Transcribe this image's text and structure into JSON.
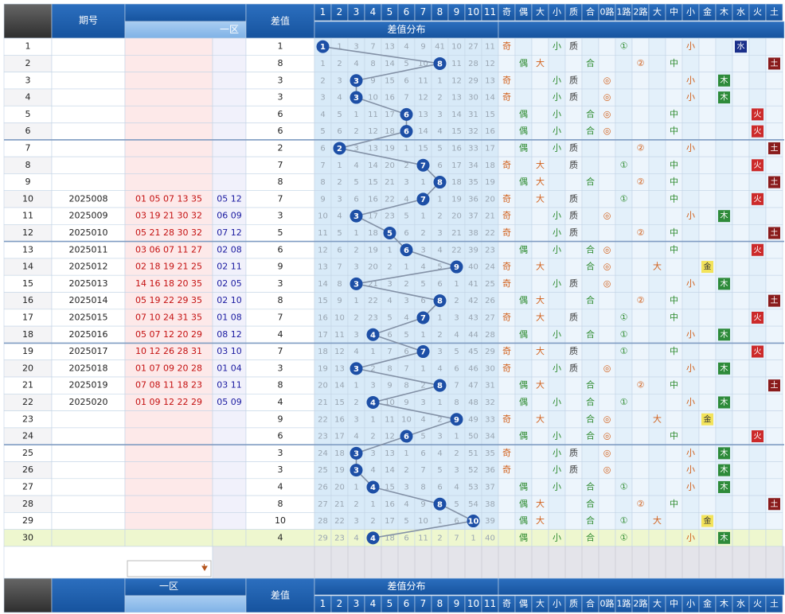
{
  "header": {
    "issue": "期号",
    "back_zone": "一区",
    "diff": "差值",
    "distribution": "差值分布",
    "digits": [
      1,
      2,
      3,
      4,
      5,
      6,
      7,
      8,
      9,
      10,
      11
    ],
    "attributes": [
      "奇",
      "偶",
      "大",
      "小",
      "质",
      "合",
      "0路",
      "1路",
      "2路",
      "大",
      "中",
      "小",
      "金",
      "木",
      "水",
      "火",
      "土"
    ]
  },
  "rows": [
    {
      "index": 1,
      "issue": null,
      "front": null,
      "back": null,
      "diff": 1,
      "missing": [
        null,
        1,
        3,
        7,
        13,
        4,
        9,
        41,
        10,
        27,
        11
      ],
      "attrs": [
        "奇",
        null,
        null,
        "小",
        "质",
        null,
        null,
        "①",
        null,
        null,
        null,
        "小",
        null,
        null,
        "水",
        null,
        null
      ]
    },
    {
      "index": 2,
      "issue": null,
      "front": null,
      "back": null,
      "diff": 8,
      "missing": [
        1,
        2,
        4,
        8,
        14,
        5,
        10,
        null,
        11,
        28,
        12
      ],
      "attrs": [
        null,
        "偶",
        "大",
        null,
        null,
        "合",
        null,
        null,
        "②",
        null,
        "中",
        null,
        null,
        null,
        null,
        null,
        "土"
      ]
    },
    {
      "index": 3,
      "issue": null,
      "front": null,
      "back": null,
      "diff": 3,
      "missing": [
        2,
        3,
        null,
        9,
        15,
        6,
        11,
        1,
        12,
        29,
        13
      ],
      "attrs": [
        "奇",
        null,
        null,
        "小",
        "质",
        null,
        "◎",
        null,
        null,
        null,
        null,
        "小",
        null,
        "木",
        null,
        null,
        null
      ]
    },
    {
      "index": 4,
      "issue": null,
      "front": null,
      "back": null,
      "diff": 3,
      "missing": [
        3,
        4,
        null,
        10,
        16,
        7,
        12,
        2,
        13,
        30,
        14
      ],
      "attrs": [
        "奇",
        null,
        null,
        "小",
        "质",
        null,
        "◎",
        null,
        null,
        null,
        null,
        "小",
        null,
        "木",
        null,
        null,
        null
      ]
    },
    {
      "index": 5,
      "issue": null,
      "front": null,
      "back": null,
      "diff": 6,
      "missing": [
        4,
        5,
        1,
        11,
        17,
        null,
        13,
        3,
        14,
        31,
        15
      ],
      "attrs": [
        null,
        "偶",
        null,
        "小",
        null,
        "合",
        "◎",
        null,
        null,
        null,
        "中",
        null,
        null,
        null,
        null,
        "火",
        null
      ]
    },
    {
      "index": 6,
      "issue": null,
      "front": null,
      "back": null,
      "diff": 6,
      "missing": [
        5,
        6,
        2,
        12,
        18,
        null,
        14,
        4,
        15,
        32,
        16
      ],
      "attrs": [
        null,
        "偶",
        null,
        "小",
        null,
        "合",
        "◎",
        null,
        null,
        null,
        "中",
        null,
        null,
        null,
        null,
        "火",
        null
      ]
    },
    {
      "index": 7,
      "issue": null,
      "front": null,
      "back": null,
      "diff": 2,
      "missing": [
        6,
        null,
        3,
        13,
        19,
        1,
        15,
        5,
        16,
        33,
        17
      ],
      "attrs": [
        null,
        "偶",
        null,
        "小",
        "质",
        null,
        null,
        null,
        "②",
        null,
        null,
        "小",
        null,
        null,
        null,
        null,
        "土"
      ]
    },
    {
      "index": 8,
      "issue": null,
      "front": null,
      "back": null,
      "diff": 7,
      "missing": [
        7,
        1,
        4,
        14,
        20,
        2,
        null,
        6,
        17,
        34,
        18
      ],
      "attrs": [
        "奇",
        null,
        "大",
        null,
        "质",
        null,
        null,
        "①",
        null,
        null,
        "中",
        null,
        null,
        null,
        null,
        "火",
        null
      ]
    },
    {
      "index": 9,
      "issue": null,
      "front": null,
      "back": null,
      "diff": 8,
      "missing": [
        8,
        2,
        5,
        15,
        21,
        3,
        1,
        null,
        18,
        35,
        19
      ],
      "attrs": [
        null,
        "偶",
        "大",
        null,
        null,
        "合",
        null,
        null,
        "②",
        null,
        "中",
        null,
        null,
        null,
        null,
        null,
        "土"
      ]
    },
    {
      "index": 10,
      "issue": "2025008",
      "front": "01 05 07 13 35",
      "back": "05 12",
      "diff": 7,
      "missing": [
        9,
        3,
        6,
        16,
        22,
        4,
        null,
        1,
        19,
        36,
        20
      ],
      "attrs": [
        "奇",
        null,
        "大",
        null,
        "质",
        null,
        null,
        "①",
        null,
        null,
        "中",
        null,
        null,
        null,
        null,
        "火",
        null
      ]
    },
    {
      "index": 11,
      "issue": "2025009",
      "front": "03 19 21 30 32",
      "back": "06 09",
      "diff": 3,
      "missing": [
        10,
        4,
        null,
        17,
        23,
        5,
        1,
        2,
        20,
        37,
        21
      ],
      "attrs": [
        "奇",
        null,
        null,
        "小",
        "质",
        null,
        "◎",
        null,
        null,
        null,
        null,
        "小",
        null,
        "木",
        null,
        null,
        null
      ]
    },
    {
      "index": 12,
      "issue": "2025010",
      "front": "05 21 28 30 32",
      "back": "07 12",
      "diff": 5,
      "missing": [
        11,
        5,
        1,
        18,
        null,
        6,
        2,
        3,
        21,
        38,
        22
      ],
      "attrs": [
        "奇",
        null,
        null,
        "小",
        "质",
        null,
        null,
        null,
        "②",
        null,
        "中",
        null,
        null,
        null,
        null,
        null,
        "土"
      ]
    },
    {
      "index": 13,
      "issue": "2025011",
      "front": "03 06 07 11 27",
      "back": "02 08",
      "diff": 6,
      "missing": [
        12,
        6,
        2,
        19,
        1,
        null,
        3,
        4,
        22,
        39,
        23
      ],
      "attrs": [
        null,
        "偶",
        null,
        "小",
        null,
        "合",
        "◎",
        null,
        null,
        null,
        "中",
        null,
        null,
        null,
        null,
        "火",
        null
      ]
    },
    {
      "index": 14,
      "issue": "2025012",
      "front": "02 18 19 21 25",
      "back": "02 11",
      "diff": 9,
      "missing": [
        13,
        7,
        3,
        20,
        2,
        1,
        4,
        5,
        null,
        40,
        24
      ],
      "attrs": [
        "奇",
        null,
        "大",
        null,
        null,
        "合",
        "◎",
        null,
        null,
        "大",
        null,
        null,
        "金",
        null,
        null,
        null,
        null
      ]
    },
    {
      "index": 15,
      "issue": "2025013",
      "front": "14 16 18 20 35",
      "back": "02 05",
      "diff": 3,
      "missing": [
        14,
        8,
        null,
        21,
        3,
        2,
        5,
        6,
        1,
        41,
        25
      ],
      "attrs": [
        "奇",
        null,
        null,
        "小",
        "质",
        null,
        "◎",
        null,
        null,
        null,
        null,
        "小",
        null,
        "木",
        null,
        null,
        null
      ]
    },
    {
      "index": 16,
      "issue": "2025014",
      "front": "05 19 22 29 35",
      "back": "02 10",
      "diff": 8,
      "missing": [
        15,
        9,
        1,
        22,
        4,
        3,
        6,
        null,
        2,
        42,
        26
      ],
      "attrs": [
        null,
        "偶",
        "大",
        null,
        null,
        "合",
        null,
        null,
        "②",
        null,
        "中",
        null,
        null,
        null,
        null,
        null,
        "土"
      ]
    },
    {
      "index": 17,
      "issue": "2025015",
      "front": "07 10 24 31 35",
      "back": "01 08",
      "diff": 7,
      "missing": [
        16,
        10,
        2,
        23,
        5,
        4,
        null,
        1,
        3,
        43,
        27
      ],
      "attrs": [
        "奇",
        null,
        "大",
        null,
        "质",
        null,
        null,
        "①",
        null,
        null,
        "中",
        null,
        null,
        null,
        null,
        "火",
        null
      ]
    },
    {
      "index": 18,
      "issue": "2025016",
      "front": "05 07 12 20 29",
      "back": "08 12",
      "diff": 4,
      "missing": [
        17,
        11,
        3,
        null,
        6,
        5,
        1,
        2,
        4,
        44,
        28
      ],
      "attrs": [
        null,
        "偶",
        null,
        "小",
        null,
        "合",
        null,
        "①",
        null,
        null,
        null,
        "小",
        null,
        "木",
        null,
        null,
        null
      ]
    },
    {
      "index": 19,
      "issue": "2025017",
      "front": "10 12 26 28 31",
      "back": "03 10",
      "diff": 7,
      "missing": [
        18,
        12,
        4,
        1,
        7,
        6,
        null,
        3,
        5,
        45,
        29
      ],
      "attrs": [
        "奇",
        null,
        "大",
        null,
        "质",
        null,
        null,
        "①",
        null,
        null,
        "中",
        null,
        null,
        null,
        null,
        "火",
        null
      ]
    },
    {
      "index": 20,
      "issue": "2025018",
      "front": "01 07 09 20 28",
      "back": "01 04",
      "diff": 3,
      "missing": [
        19,
        13,
        null,
        2,
        8,
        7,
        1,
        4,
        6,
        46,
        30
      ],
      "attrs": [
        "奇",
        null,
        null,
        "小",
        "质",
        null,
        "◎",
        null,
        null,
        null,
        null,
        "小",
        null,
        "木",
        null,
        null,
        null
      ]
    },
    {
      "index": 21,
      "issue": "2025019",
      "front": "07 08 11 18 23",
      "back": "03 11",
      "diff": 8,
      "missing": [
        20,
        14,
        1,
        3,
        9,
        8,
        2,
        null,
        7,
        47,
        31
      ],
      "attrs": [
        null,
        "偶",
        "大",
        null,
        null,
        "合",
        null,
        null,
        "②",
        null,
        "中",
        null,
        null,
        null,
        null,
        null,
        "土"
      ]
    },
    {
      "index": 22,
      "issue": "2025020",
      "front": "01 09 12 22 29",
      "back": "05 09",
      "diff": 4,
      "missing": [
        21,
        15,
        2,
        null,
        10,
        9,
        3,
        1,
        8,
        48,
        32
      ],
      "attrs": [
        null,
        "偶",
        null,
        "小",
        null,
        "合",
        null,
        "①",
        null,
        null,
        null,
        "小",
        null,
        "木",
        null,
        null,
        null
      ]
    },
    {
      "index": 23,
      "issue": null,
      "front": null,
      "back": null,
      "diff": 9,
      "missing": [
        22,
        16,
        3,
        1,
        11,
        10,
        4,
        2,
        null,
        49,
        33
      ],
      "attrs": [
        "奇",
        null,
        "大",
        null,
        null,
        "合",
        "◎",
        null,
        null,
        "大",
        null,
        null,
        "金",
        null,
        null,
        null,
        null
      ]
    },
    {
      "index": 24,
      "issue": null,
      "front": null,
      "back": null,
      "diff": 6,
      "missing": [
        23,
        17,
        4,
        2,
        12,
        null,
        5,
        3,
        1,
        50,
        34
      ],
      "attrs": [
        null,
        "偶",
        null,
        "小",
        null,
        "合",
        "◎",
        null,
        null,
        null,
        "中",
        null,
        null,
        null,
        null,
        "火",
        null
      ]
    },
    {
      "index": 25,
      "issue": null,
      "front": null,
      "back": null,
      "diff": 3,
      "missing": [
        24,
        18,
        null,
        3,
        13,
        1,
        6,
        4,
        2,
        51,
        35
      ],
      "attrs": [
        "奇",
        null,
        null,
        "小",
        "质",
        null,
        "◎",
        null,
        null,
        null,
        null,
        "小",
        null,
        "木",
        null,
        null,
        null
      ]
    },
    {
      "index": 26,
      "issue": null,
      "front": null,
      "back": null,
      "diff": 3,
      "missing": [
        25,
        19,
        null,
        4,
        14,
        2,
        7,
        5,
        3,
        52,
        36
      ],
      "attrs": [
        "奇",
        null,
        null,
        "小",
        "质",
        null,
        "◎",
        null,
        null,
        null,
        null,
        "小",
        null,
        "木",
        null,
        null,
        null
      ]
    },
    {
      "index": 27,
      "issue": null,
      "front": null,
      "back": null,
      "diff": 4,
      "missing": [
        26,
        20,
        1,
        null,
        15,
        3,
        8,
        6,
        4,
        53,
        37
      ],
      "attrs": [
        null,
        "偶",
        null,
        "小",
        null,
        "合",
        null,
        "①",
        null,
        null,
        null,
        "小",
        null,
        "木",
        null,
        null,
        null
      ]
    },
    {
      "index": 28,
      "issue": null,
      "front": null,
      "back": null,
      "diff": 8,
      "missing": [
        27,
        21,
        2,
        1,
        16,
        4,
        9,
        null,
        5,
        54,
        38
      ],
      "attrs": [
        null,
        "偶",
        "大",
        null,
        null,
        "合",
        null,
        null,
        "②",
        null,
        "中",
        null,
        null,
        null,
        null,
        null,
        "土"
      ]
    },
    {
      "index": 29,
      "issue": null,
      "front": null,
      "back": null,
      "diff": 10,
      "missing": [
        28,
        22,
        3,
        2,
        17,
        5,
        10,
        1,
        6,
        null,
        39
      ],
      "attrs": [
        null,
        "偶",
        "大",
        null,
        null,
        "合",
        null,
        "①",
        null,
        "大",
        null,
        null,
        "金",
        null,
        null,
        null,
        null
      ]
    },
    {
      "index": 30,
      "issue": null,
      "front": null,
      "back": null,
      "diff": 4,
      "missing": [
        29,
        23,
        4,
        null,
        18,
        6,
        11,
        2,
        7,
        1,
        40
      ],
      "attrs": [
        null,
        "偶",
        null,
        "小",
        null,
        "合",
        null,
        "①",
        null,
        null,
        null,
        "小",
        null,
        "木",
        null,
        null,
        null
      ]
    }
  ]
}
